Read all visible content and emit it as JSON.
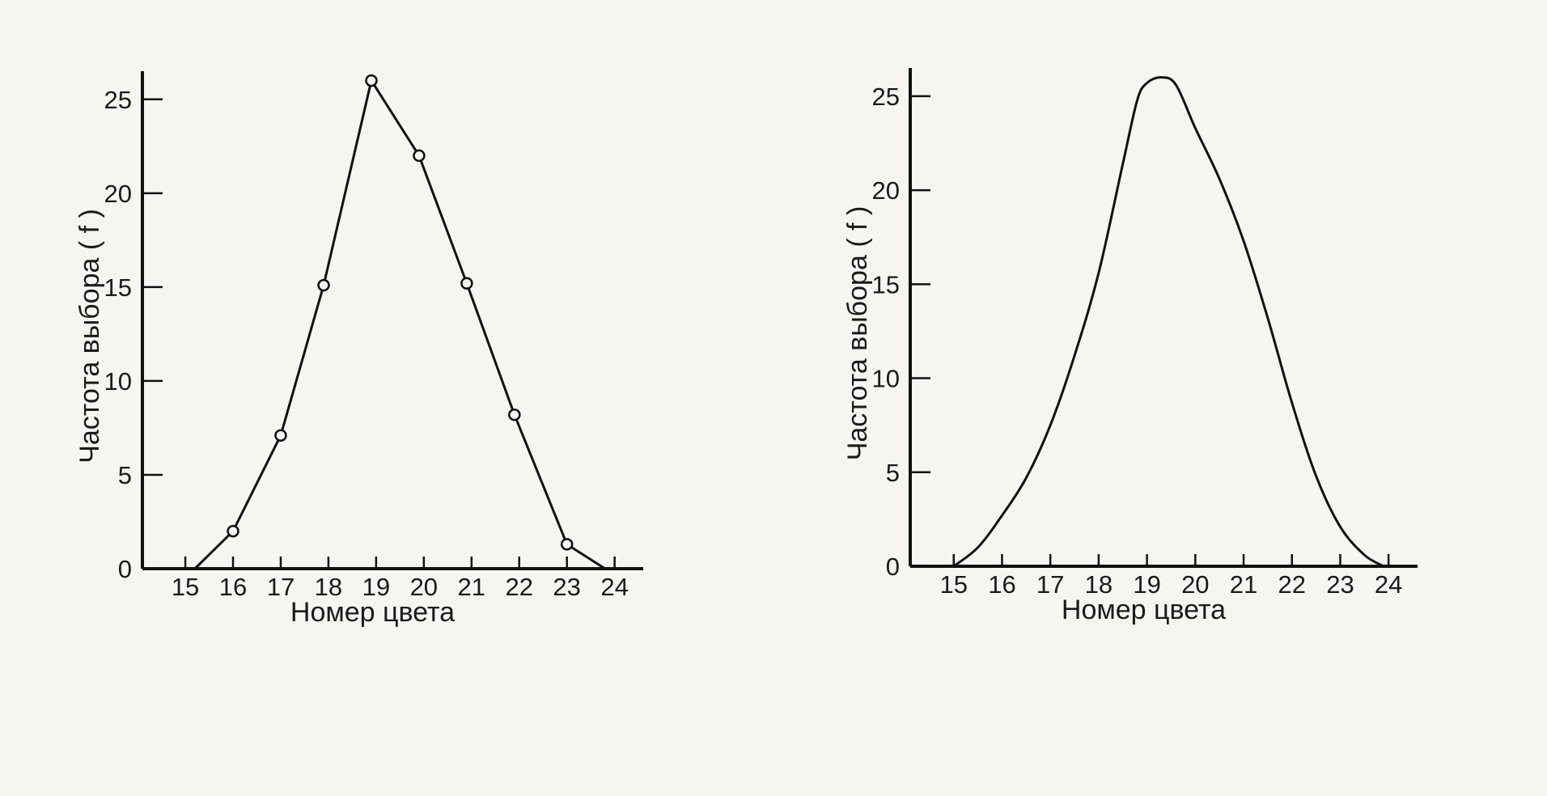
{
  "chart_data": [
    {
      "type": "line",
      "style": "polygon-with-markers",
      "xlabel": "Номер цвета",
      "ylabel": "Частота выбора ( f )",
      "xticks": [
        15,
        16,
        17,
        18,
        19,
        20,
        21,
        22,
        23,
        24
      ],
      "yticks": [
        0,
        5,
        10,
        15,
        20,
        25
      ],
      "xlim": [
        14.1,
        24.6
      ],
      "ylim": [
        0,
        26.5
      ],
      "grid": false,
      "series": [
        {
          "x": [
            15.2,
            16,
            17,
            17.9,
            18.9,
            19.9,
            20.9,
            21.9,
            23,
            23.8
          ],
          "y": [
            0,
            2,
            7.1,
            15.1,
            26,
            22,
            15.2,
            8.2,
            1.3,
            0
          ],
          "markers": [
            false,
            true,
            true,
            true,
            true,
            true,
            true,
            true,
            true,
            false
          ]
        }
      ]
    },
    {
      "type": "line",
      "style": "smooth-curve",
      "xlabel": "Номер цвета",
      "ylabel": "Частота выбора ( f )",
      "xticks": [
        15,
        16,
        17,
        18,
        19,
        20,
        21,
        22,
        23,
        24
      ],
      "yticks": [
        0,
        5,
        10,
        15,
        20,
        25
      ],
      "xlim": [
        14.1,
        24.6
      ],
      "ylim": [
        0,
        26.5
      ],
      "grid": false,
      "series": [
        {
          "x": [
            15,
            15.5,
            16,
            16.5,
            17,
            17.5,
            18,
            18.5,
            18.8,
            19,
            19.3,
            19.6,
            20,
            20.5,
            21,
            21.5,
            22,
            22.5,
            23,
            23.5,
            23.9
          ],
          "y": [
            0,
            1,
            2.7,
            4.7,
            7.5,
            11.2,
            15.6,
            21.4,
            24.8,
            25.7,
            26,
            25.6,
            23.3,
            20.6,
            17.3,
            13.2,
            8.7,
            4.8,
            2.1,
            0.6,
            0
          ]
        }
      ]
    }
  ]
}
